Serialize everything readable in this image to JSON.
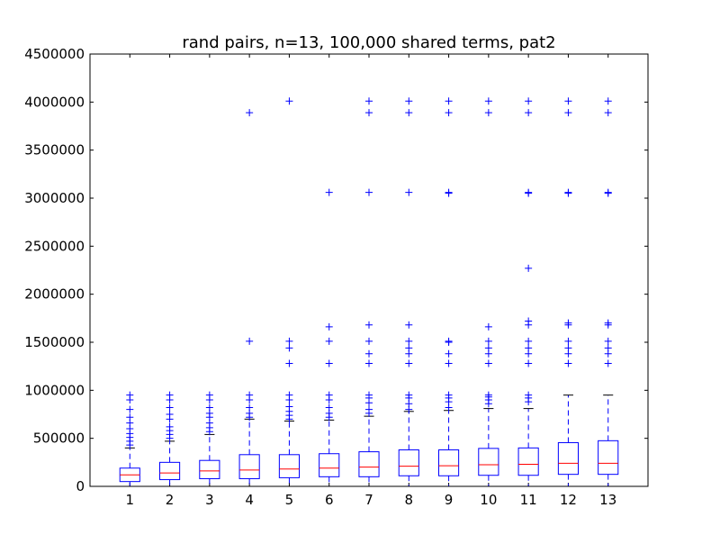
{
  "chart_data": {
    "type": "boxplot",
    "title": "rand pairs, n=13, 100,000 shared terms, pat2",
    "xlabel": "",
    "ylabel": "",
    "ylim": [
      0,
      4500000
    ],
    "yticks": [
      0,
      500000,
      1000000,
      1500000,
      2000000,
      2500000,
      3000000,
      3500000,
      4000000,
      4500000
    ],
    "ytick_labels": [
      "0",
      "500000",
      "1000000",
      "1500000",
      "2000000",
      "2500000",
      "3000000",
      "3500000",
      "4000000",
      "4500000"
    ],
    "categories": [
      "1",
      "2",
      "3",
      "4",
      "5",
      "6",
      "7",
      "8",
      "9",
      "10",
      "11",
      "12",
      "13"
    ],
    "grid": false,
    "box_color": "#0000ff",
    "median_color": "#ff0000",
    "whisker_cap_color": "#000000",
    "flier_marker": "+",
    "boxes": [
      {
        "label": "1",
        "whisker_low": 0,
        "q1": 50000,
        "median": 120000,
        "q3": 190000,
        "whisker_high": 400000,
        "fliers": [
          430000,
          470000,
          510000,
          550000,
          600000,
          660000,
          720000,
          800000,
          900000,
          950000
        ]
      },
      {
        "label": "2",
        "whisker_low": 0,
        "q1": 70000,
        "median": 140000,
        "q3": 250000,
        "whisker_high": 470000,
        "fliers": [
          500000,
          540000,
          580000,
          620000,
          700000,
          750000,
          820000,
          900000,
          950000
        ]
      },
      {
        "label": "3",
        "whisker_low": 0,
        "q1": 80000,
        "median": 160000,
        "q3": 270000,
        "whisker_high": 540000,
        "fliers": [
          570000,
          610000,
          660000,
          720000,
          760000,
          820000,
          900000,
          950000
        ]
      },
      {
        "label": "4",
        "whisker_low": 0,
        "q1": 80000,
        "median": 170000,
        "q3": 330000,
        "whisker_high": 700000,
        "fliers": [
          720000,
          760000,
          820000,
          900000,
          950000,
          1510000,
          3890000
        ]
      },
      {
        "label": "5",
        "whisker_low": 0,
        "q1": 90000,
        "median": 180000,
        "q3": 330000,
        "whisker_high": 680000,
        "fliers": [
          700000,
          740000,
          780000,
          830000,
          900000,
          950000,
          1280000,
          1440000,
          1510000,
          4010000
        ]
      },
      {
        "label": "6",
        "whisker_low": 0,
        "q1": 100000,
        "median": 190000,
        "q3": 340000,
        "whisker_high": 690000,
        "fliers": [
          720000,
          760000,
          820000,
          900000,
          950000,
          1280000,
          1510000,
          1660000,
          3060000
        ]
      },
      {
        "label": "7",
        "whisker_low": 0,
        "q1": 100000,
        "median": 200000,
        "q3": 360000,
        "whisker_high": 730000,
        "fliers": [
          760000,
          800000,
          870000,
          920000,
          950000,
          1280000,
          1380000,
          1510000,
          1680000,
          3060000,
          3890000,
          4010000
        ]
      },
      {
        "label": "8",
        "whisker_low": 0,
        "q1": 110000,
        "median": 210000,
        "q3": 380000,
        "whisker_high": 780000,
        "fliers": [
          800000,
          860000,
          920000,
          950000,
          1280000,
          1380000,
          1440000,
          1510000,
          1680000,
          3060000,
          3890000,
          4010000
        ]
      },
      {
        "label": "9",
        "whisker_low": 0,
        "q1": 110000,
        "median": 215000,
        "q3": 380000,
        "whisker_high": 790000,
        "fliers": [
          820000,
          880000,
          920000,
          950000,
          1280000,
          1380000,
          1500000,
          1510000,
          3050000,
          3060000,
          3890000,
          4010000
        ]
      },
      {
        "label": "10",
        "whisker_low": 0,
        "q1": 115000,
        "median": 225000,
        "q3": 395000,
        "whisker_high": 810000,
        "fliers": [
          860000,
          900000,
          930000,
          950000,
          1280000,
          1380000,
          1440000,
          1510000,
          1660000,
          3890000,
          4010000
        ]
      },
      {
        "label": "11",
        "whisker_low": 0,
        "q1": 115000,
        "median": 230000,
        "q3": 400000,
        "whisker_high": 810000,
        "fliers": [
          880000,
          920000,
          950000,
          1280000,
          1380000,
          1440000,
          1510000,
          1680000,
          1720000,
          2270000,
          3050000,
          3060000,
          3890000,
          4010000
        ]
      },
      {
        "label": "12",
        "whisker_low": 0,
        "q1": 125000,
        "median": 240000,
        "q3": 455000,
        "whisker_high": 950000,
        "fliers": [
          1280000,
          1380000,
          1440000,
          1510000,
          1680000,
          1700000,
          3050000,
          3060000,
          3890000,
          4010000
        ]
      },
      {
        "label": "13",
        "whisker_low": 0,
        "q1": 125000,
        "median": 240000,
        "q3": 475000,
        "whisker_high": 950000,
        "fliers": [
          1280000,
          1380000,
          1440000,
          1510000,
          1680000,
          1700000,
          3050000,
          3060000,
          3890000,
          4010000
        ]
      }
    ]
  }
}
